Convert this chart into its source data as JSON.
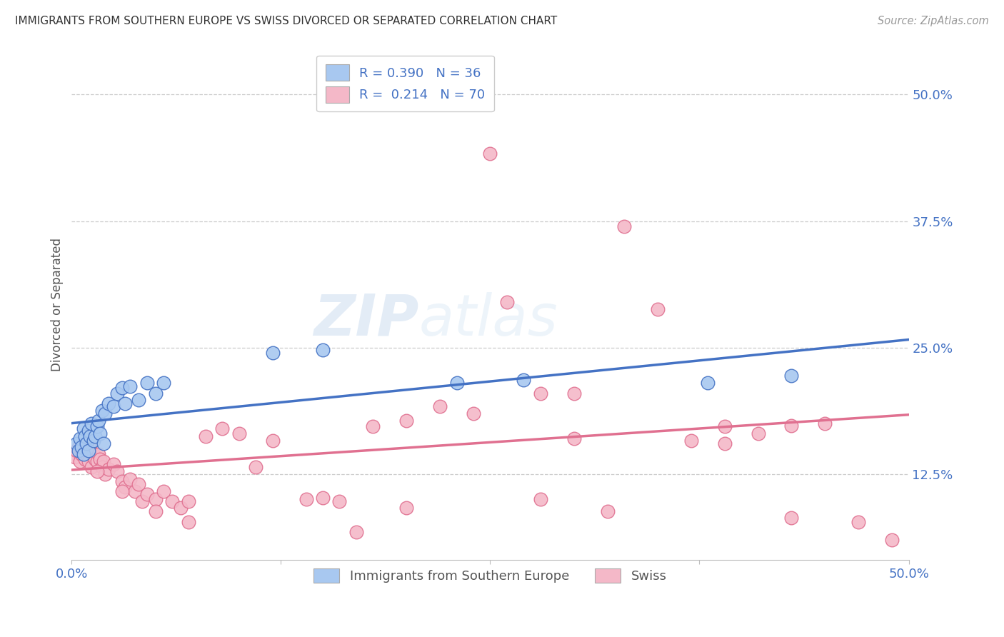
{
  "title": "IMMIGRANTS FROM SOUTHERN EUROPE VS SWISS DIVORCED OR SEPARATED CORRELATION CHART",
  "source": "Source: ZipAtlas.com",
  "ylabel": "Divorced or Separated",
  "ytick_labels": [
    "12.5%",
    "25.0%",
    "37.5%",
    "50.0%"
  ],
  "ytick_values": [
    0.125,
    0.25,
    0.375,
    0.5
  ],
  "xlim": [
    0.0,
    0.5
  ],
  "ylim": [
    0.04,
    0.545
  ],
  "legend_label1": "Immigrants from Southern Europe",
  "legend_label2": "Swiss",
  "legend_R1": "0.390",
  "legend_N1": "36",
  "legend_R2": "0.214",
  "legend_N2": "70",
  "color_blue": "#a8c8f0",
  "color_blue_line": "#4472c4",
  "color_pink": "#f4b8c8",
  "color_pink_line": "#e07090",
  "color_blue_text": "#4472c4",
  "background_color": "#ffffff",
  "watermark_zip": "ZIP",
  "watermark_atlas": "atlas",
  "blue_scatter_x": [
    0.003,
    0.004,
    0.005,
    0.006,
    0.007,
    0.007,
    0.008,
    0.009,
    0.01,
    0.01,
    0.011,
    0.012,
    0.013,
    0.014,
    0.015,
    0.016,
    0.017,
    0.018,
    0.019,
    0.02,
    0.022,
    0.025,
    0.027,
    0.03,
    0.032,
    0.035,
    0.04,
    0.045,
    0.05,
    0.055,
    0.12,
    0.15,
    0.23,
    0.27,
    0.38,
    0.43
  ],
  "blue_scatter_y": [
    0.155,
    0.148,
    0.16,
    0.152,
    0.145,
    0.17,
    0.162,
    0.155,
    0.148,
    0.168,
    0.162,
    0.175,
    0.158,
    0.162,
    0.172,
    0.178,
    0.165,
    0.188,
    0.155,
    0.185,
    0.195,
    0.192,
    0.205,
    0.21,
    0.195,
    0.212,
    0.198,
    0.215,
    0.205,
    0.215,
    0.245,
    0.248,
    0.215,
    0.218,
    0.215,
    0.222
  ],
  "pink_scatter_x": [
    0.002,
    0.003,
    0.004,
    0.005,
    0.006,
    0.007,
    0.008,
    0.009,
    0.01,
    0.011,
    0.012,
    0.013,
    0.014,
    0.015,
    0.016,
    0.017,
    0.018,
    0.019,
    0.02,
    0.022,
    0.025,
    0.027,
    0.03,
    0.032,
    0.035,
    0.038,
    0.04,
    0.042,
    0.045,
    0.05,
    0.055,
    0.06,
    0.065,
    0.07,
    0.08,
    0.09,
    0.1,
    0.12,
    0.14,
    0.16,
    0.18,
    0.2,
    0.22,
    0.24,
    0.26,
    0.28,
    0.3,
    0.33,
    0.35,
    0.37,
    0.39,
    0.41,
    0.43,
    0.45,
    0.47,
    0.49,
    0.25,
    0.3,
    0.17,
    0.39,
    0.43,
    0.28,
    0.32,
    0.2,
    0.15,
    0.11,
    0.07,
    0.05,
    0.03,
    0.015
  ],
  "pink_scatter_y": [
    0.142,
    0.148,
    0.152,
    0.138,
    0.145,
    0.152,
    0.14,
    0.145,
    0.138,
    0.15,
    0.132,
    0.145,
    0.14,
    0.138,
    0.145,
    0.14,
    0.132,
    0.138,
    0.125,
    0.13,
    0.135,
    0.128,
    0.118,
    0.112,
    0.12,
    0.108,
    0.115,
    0.098,
    0.105,
    0.1,
    0.108,
    0.098,
    0.092,
    0.098,
    0.162,
    0.17,
    0.165,
    0.158,
    0.1,
    0.098,
    0.172,
    0.178,
    0.192,
    0.185,
    0.295,
    0.205,
    0.16,
    0.37,
    0.288,
    0.158,
    0.172,
    0.165,
    0.173,
    0.175,
    0.078,
    0.06,
    0.442,
    0.205,
    0.068,
    0.155,
    0.082,
    0.1,
    0.088,
    0.092,
    0.102,
    0.132,
    0.078,
    0.088,
    0.108,
    0.128
  ]
}
